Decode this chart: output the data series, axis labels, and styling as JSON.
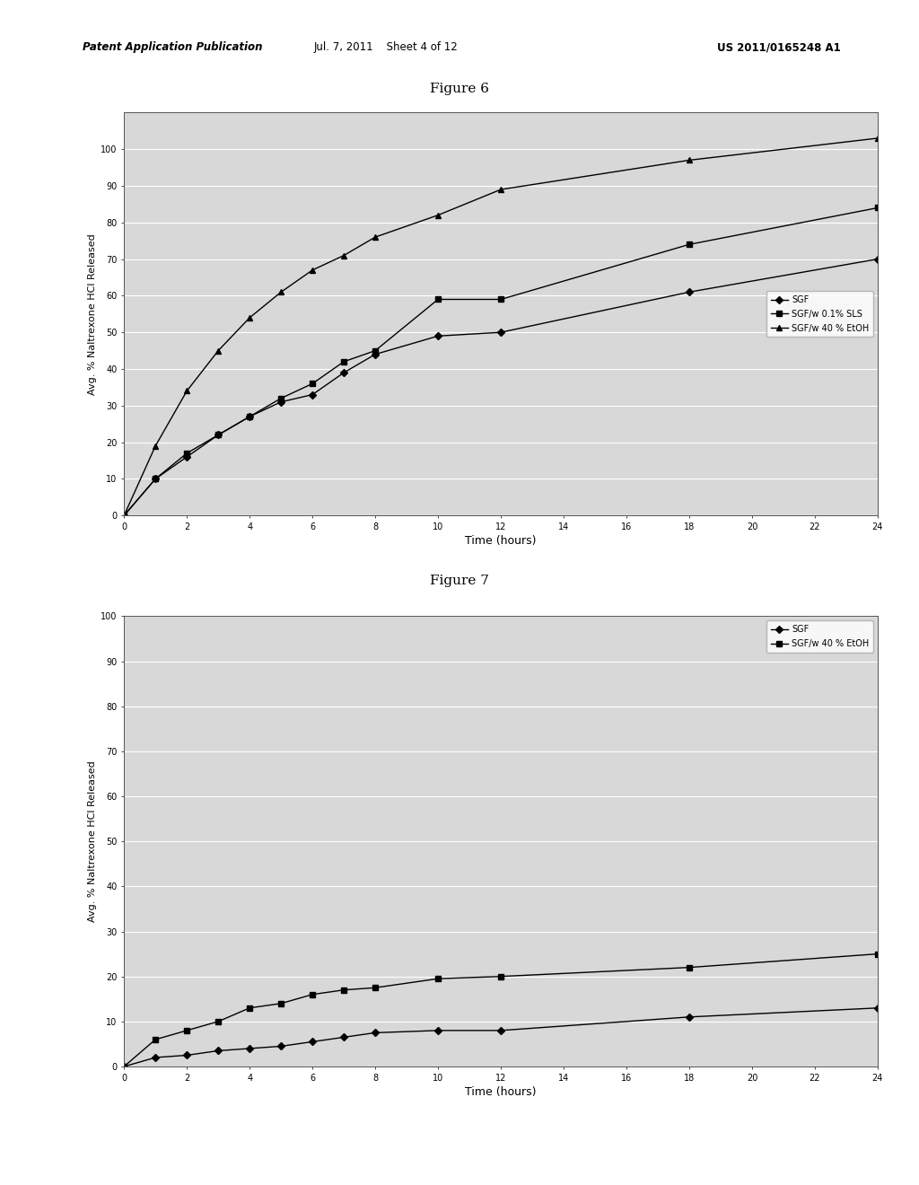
{
  "header_left": "Patent Application Publication",
  "header_mid": "Jul. 7, 2011    Sheet 4 of 12",
  "header_right": "US 2011/0165248 A1",
  "fig6": {
    "title": "Figure 6",
    "xlabel": "Time (hours)",
    "ylabel": "Avg. % Naltrexone HCl Released",
    "xlim": [
      0,
      24
    ],
    "ylim": [
      0,
      110
    ],
    "yticks": [
      0,
      10,
      20,
      30,
      40,
      50,
      60,
      70,
      80,
      90,
      100
    ],
    "xticks": [
      0,
      2,
      4,
      6,
      8,
      10,
      12,
      14,
      16,
      18,
      20,
      22,
      24
    ],
    "series": [
      {
        "label": "SGF",
        "marker": "D",
        "x": [
          0,
          1,
          2,
          3,
          4,
          5,
          6,
          7,
          8,
          10,
          12,
          18,
          24
        ],
        "y": [
          0,
          10,
          16,
          22,
          27,
          31,
          33,
          39,
          44,
          49,
          50,
          61,
          70
        ]
      },
      {
        "label": "SGF/w 0.1% SLS",
        "marker": "s",
        "x": [
          0,
          1,
          2,
          3,
          4,
          5,
          6,
          7,
          8,
          10,
          12,
          18,
          24
        ],
        "y": [
          0,
          10,
          17,
          22,
          27,
          32,
          36,
          42,
          45,
          59,
          59,
          74,
          84
        ]
      },
      {
        "label": "SGF/w 40 % EtOH",
        "marker": "^",
        "x": [
          0,
          1,
          2,
          3,
          4,
          5,
          6,
          7,
          8,
          10,
          12,
          18,
          24
        ],
        "y": [
          0,
          19,
          34,
          45,
          54,
          61,
          67,
          71,
          76,
          82,
          89,
          97,
          103
        ]
      }
    ],
    "legend_loc": "center right"
  },
  "fig7": {
    "title": "Figure 7",
    "xlabel": "Time (hours)",
    "ylabel": "Avg. % Naltrexone HCl Released",
    "xlim": [
      0,
      24
    ],
    "ylim": [
      0,
      100
    ],
    "yticks": [
      0,
      10,
      20,
      30,
      40,
      50,
      60,
      70,
      80,
      90,
      100
    ],
    "xticks": [
      0,
      2,
      4,
      6,
      8,
      10,
      12,
      14,
      16,
      18,
      20,
      22,
      24
    ],
    "series": [
      {
        "label": "SGF",
        "marker": "D",
        "x": [
          0,
          1,
          2,
          3,
          4,
          5,
          6,
          7,
          8,
          10,
          12,
          18,
          24
        ],
        "y": [
          0,
          2,
          2.5,
          3.5,
          4,
          4.5,
          5.5,
          6.5,
          7.5,
          8,
          8,
          11,
          13
        ]
      },
      {
        "label": "SGF/w 40 % EtOH",
        "marker": "s",
        "x": [
          0,
          1,
          2,
          3,
          4,
          5,
          6,
          7,
          8,
          10,
          12,
          18,
          24
        ],
        "y": [
          0,
          6,
          8,
          10,
          13,
          14,
          16,
          17,
          17.5,
          19.5,
          20,
          22,
          25
        ]
      }
    ],
    "legend_loc": "upper right"
  },
  "bg_color": "#ffffff",
  "plot_bg_color": "#d8d8d8",
  "line_color": "#000000",
  "grid_color": "#ffffff",
  "title_fontsize": 11,
  "label_fontsize": 8,
  "tick_fontsize": 7,
  "legend_fontsize": 7
}
